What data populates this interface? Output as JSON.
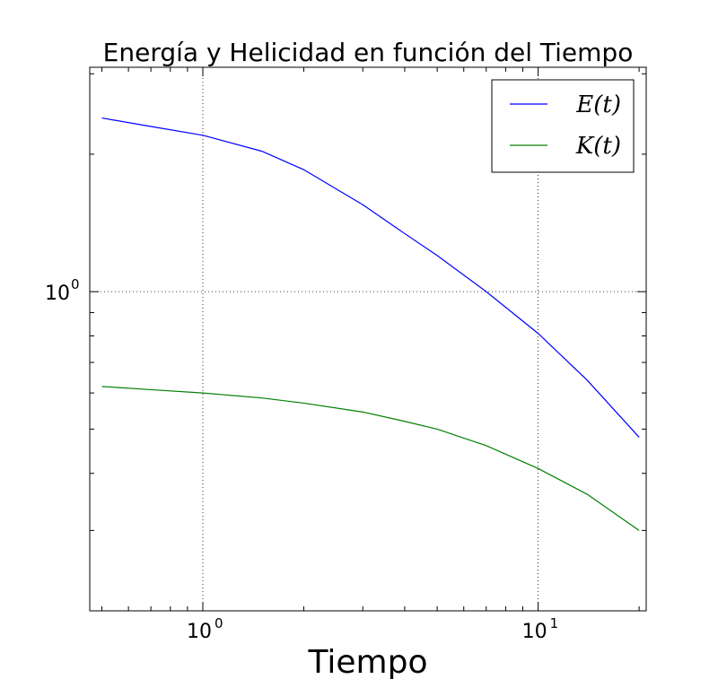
{
  "chart_data": {
    "type": "line",
    "title": "Energía y Helicidad en función del Tiempo",
    "xlabel": "Tiempo",
    "ylabel": "",
    "xscale": "log",
    "yscale": "log",
    "xlim": [
      0.46,
      21
    ],
    "ylim": [
      0.2,
      3.1
    ],
    "grid": true,
    "legend": "top-right",
    "x_ticks": [
      {
        "value": 1,
        "base": "10",
        "exp": "0"
      },
      {
        "value": 10,
        "base": "10",
        "exp": "1"
      }
    ],
    "y_ticks": [
      {
        "value": 1,
        "base": "10",
        "exp": "0"
      }
    ],
    "series": [
      {
        "name": "E(t)",
        "color": "#0000ff",
        "x": [
          0.5,
          0.7,
          1.0,
          1.5,
          2.0,
          3.0,
          4.0,
          5.0,
          7.0,
          10.0,
          14.0,
          20.0
        ],
        "y": [
          2.4,
          2.3,
          2.2,
          2.03,
          1.85,
          1.55,
          1.34,
          1.2,
          1.0,
          0.81,
          0.64,
          0.48
        ]
      },
      {
        "name": "K(t)",
        "color": "#008000",
        "x": [
          0.5,
          0.7,
          1.0,
          1.5,
          2.0,
          3.0,
          4.0,
          5.0,
          7.0,
          10.0,
          14.0,
          20.0
        ],
        "y": [
          0.62,
          0.61,
          0.6,
          0.585,
          0.57,
          0.545,
          0.52,
          0.5,
          0.46,
          0.41,
          0.36,
          0.3
        ]
      }
    ]
  }
}
